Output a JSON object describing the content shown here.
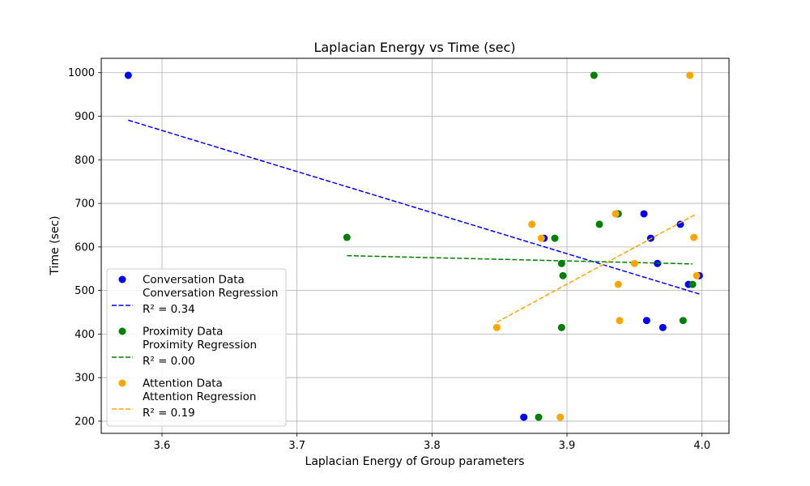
{
  "chart_data": {
    "type": "scatter",
    "title": "Laplacian Energy vs Time (sec)",
    "xlabel": "Laplacian Energy of Group parameters",
    "ylabel": "Time (sec)",
    "xlim": [
      3.555,
      4.02
    ],
    "ylim": [
      172,
      1033
    ],
    "xticks": [
      3.6,
      3.7,
      3.8,
      3.9,
      4.0
    ],
    "xtick_labels": [
      "3.6",
      "3.7",
      "3.8",
      "3.9",
      "4.0"
    ],
    "yticks": [
      200,
      300,
      400,
      500,
      600,
      700,
      800,
      900,
      1000
    ],
    "ytick_labels": [
      "200",
      "300",
      "400",
      "500",
      "600",
      "700",
      "800",
      "900",
      "1000"
    ],
    "grid": true,
    "legend_position": "lower-left",
    "series": [
      {
        "name": "Conversation Data",
        "kind": "scatter",
        "color": "#0000ff",
        "points": [
          [
            3.575,
            994
          ],
          [
            3.868,
            209
          ],
          [
            3.883,
            620
          ],
          [
            3.937,
            676
          ],
          [
            3.957,
            676
          ],
          [
            3.959,
            431
          ],
          [
            3.962,
            620
          ],
          [
            3.967,
            562
          ],
          [
            3.971,
            415
          ],
          [
            3.984,
            652
          ],
          [
            3.99,
            514
          ],
          [
            3.998,
            534
          ]
        ]
      },
      {
        "name": "Conversation Regression",
        "kind": "line",
        "r2": "R² = 0.34",
        "color": "#0000ff",
        "points": [
          [
            3.575,
            891
          ],
          [
            3.998,
            492
          ]
        ]
      },
      {
        "name": "Proximity Data",
        "kind": "scatter",
        "color": "#008000",
        "points": [
          [
            3.737,
            622
          ],
          [
            3.879,
            209
          ],
          [
            3.891,
            620
          ],
          [
            3.896,
            415
          ],
          [
            3.896,
            562
          ],
          [
            3.897,
            534
          ],
          [
            3.92,
            994
          ],
          [
            3.924,
            652
          ],
          [
            3.938,
            676
          ],
          [
            3.986,
            431
          ],
          [
            3.993,
            514
          ]
        ]
      },
      {
        "name": "Proximity Regression",
        "kind": "line",
        "r2": "R² = 0.00",
        "color": "#008000",
        "points": [
          [
            3.737,
            580
          ],
          [
            3.993,
            561
          ]
        ]
      },
      {
        "name": "Attention Data",
        "kind": "scatter",
        "color": "#ffa500",
        "points": [
          [
            3.848,
            415
          ],
          [
            3.874,
            652
          ],
          [
            3.881,
            620
          ],
          [
            3.895,
            209
          ],
          [
            3.936,
            676
          ],
          [
            3.938,
            514
          ],
          [
            3.939,
            431
          ],
          [
            3.95,
            562
          ],
          [
            3.991,
            994
          ],
          [
            3.994,
            622
          ],
          [
            3.996,
            534
          ]
        ]
      },
      {
        "name": "Attention Regression",
        "kind": "line",
        "r2": "R² = 0.19",
        "color": "#ffa500",
        "points": [
          [
            3.848,
            427
          ],
          [
            3.996,
            676
          ]
        ]
      }
    ]
  }
}
